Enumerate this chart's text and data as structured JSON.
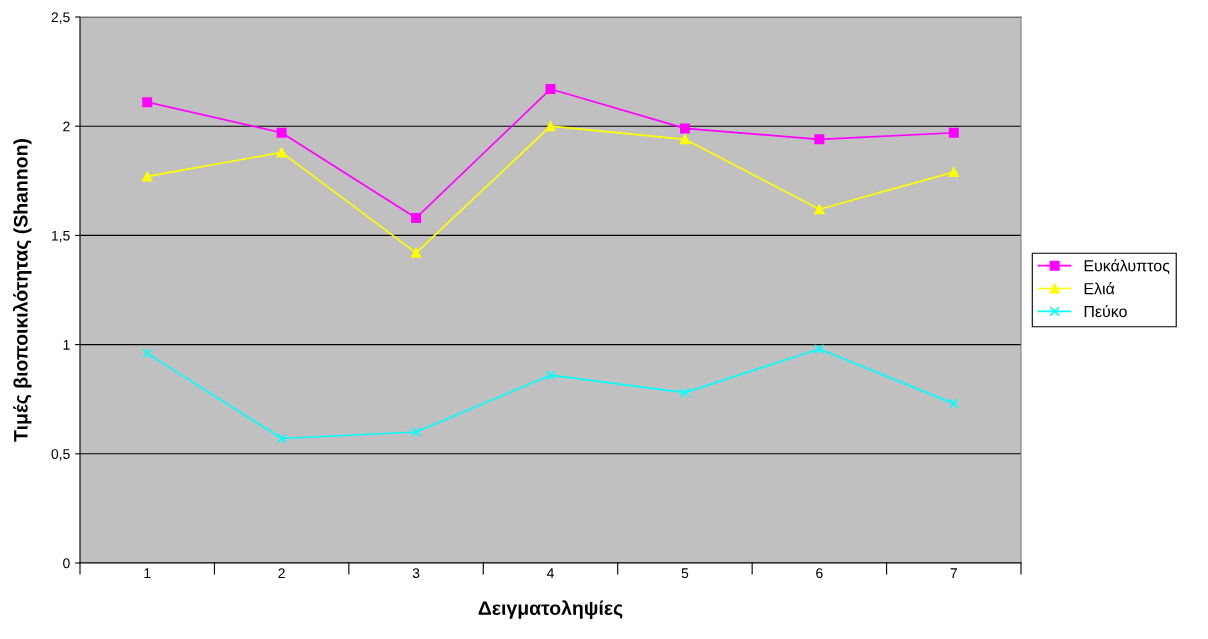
{
  "chart_data": {
    "type": "line",
    "xlabel": "Δειγματοληψίες",
    "ylabel": "Τιμές βιοποικιλότητας (Shannon)",
    "categories": [
      "1",
      "2",
      "3",
      "4",
      "5",
      "6",
      "7"
    ],
    "series": [
      {
        "name": "Ευκάλυπτος",
        "color": "#ff00ff",
        "marker": "square",
        "values": [
          2.11,
          1.97,
          1.58,
          2.17,
          1.99,
          1.94,
          1.97
        ]
      },
      {
        "name": "Ελιά",
        "color": "#ffff00",
        "marker": "triangle",
        "values": [
          1.77,
          1.88,
          1.42,
          2.0,
          1.94,
          1.62,
          1.79
        ]
      },
      {
        "name": "Πεύκο",
        "color": "#00ffff",
        "marker": "cross",
        "values": [
          0.96,
          0.57,
          0.6,
          0.86,
          0.78,
          0.98,
          0.73
        ]
      }
    ],
    "ylim": [
      0,
      2.5
    ],
    "yticks": [
      0,
      {
        "value": 0.5,
        "label": "0,5"
      },
      1,
      {
        "value": 1.5,
        "label": "1,5"
      },
      2,
      {
        "value": 2.5,
        "label": "2,5"
      }
    ],
    "grid": "y",
    "legend": "right",
    "line_style": "solid"
  }
}
